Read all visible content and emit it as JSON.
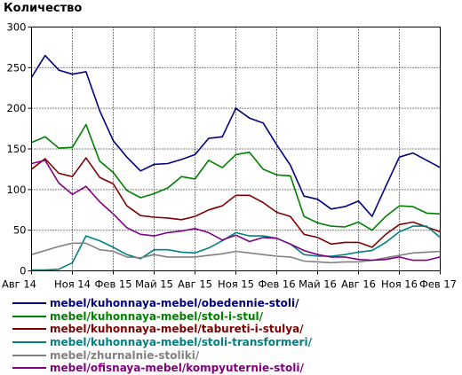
{
  "chart_data": {
    "type": "line",
    "title": "Количество",
    "xlabel": "",
    "ylabel": "",
    "ylim": [
      0,
      300
    ],
    "yticks": [
      0,
      50,
      100,
      150,
      200,
      250,
      300
    ],
    "grid": true,
    "legend_position": "bottom",
    "x": [
      "2014-08",
      "2014-09",
      "2014-10",
      "2014-11",
      "2014-12",
      "2015-01",
      "2015-02",
      "2015-03",
      "2015-04",
      "2015-05",
      "2015-06",
      "2015-07",
      "2015-08",
      "2015-09",
      "2015-10",
      "2015-11",
      "2015-12",
      "2016-01",
      "2016-02",
      "2016-03",
      "2016-04",
      "2016-05",
      "2016-06",
      "2016-07",
      "2016-08",
      "2016-09",
      "2016-10",
      "2016-11",
      "2016-12",
      "2017-01",
      "2017-02"
    ],
    "xtick_labels": [
      "Авг 14",
      "Ноя 14",
      "Фев 15",
      "Май 15",
      "Авг 15",
      "Ноя 15",
      "Фев 16",
      "Май 16",
      "Авг 16",
      "Ноя 16",
      "Фев 17"
    ],
    "series": [
      {
        "name": "mebel/kuhonnaya-mebel/obedennie-stoli/",
        "color": "#00007f",
        "values": [
          238,
          265,
          247,
          242,
          245,
          197,
          160,
          140,
          123,
          131,
          132,
          137,
          143,
          163,
          165,
          200,
          188,
          182,
          155,
          130,
          92,
          88,
          76,
          79,
          86,
          67,
          104,
          140,
          145,
          136,
          127
        ]
      },
      {
        "name": "mebel/kuhonnaya-mebel/stol-i-stul/",
        "color": "#008000",
        "values": [
          158,
          165,
          151,
          152,
          180,
          135,
          121,
          99,
          90,
          95,
          102,
          116,
          113,
          136,
          127,
          143,
          146,
          125,
          118,
          117,
          67,
          59,
          55,
          54,
          60,
          50,
          67,
          80,
          79,
          71,
          70
        ]
      },
      {
        "name": "mebel/kuhonnaya-mebel/tabureti-i-stulya/",
        "color": "#7f0000",
        "values": [
          125,
          138,
          120,
          116,
          139,
          115,
          107,
          80,
          68,
          66,
          65,
          63,
          67,
          75,
          80,
          93,
          93,
          84,
          72,
          67,
          45,
          41,
          33,
          35,
          35,
          29,
          45,
          57,
          60,
          54,
          48
        ]
      },
      {
        "name": "mebel/kuhonnaya-mebel/stoli-transformeri/",
        "color": "#008080",
        "values": [
          1,
          1,
          2,
          10,
          43,
          37,
          29,
          20,
          15,
          26,
          26,
          23,
          22,
          28,
          37,
          47,
          43,
          43,
          40,
          33,
          20,
          18,
          18,
          20,
          23,
          25,
          35,
          48,
          55,
          55,
          41
        ]
      },
      {
        "name": "mebel/zhurnalnie-stoliki/",
        "color": "#808080",
        "values": [
          20,
          25,
          30,
          34,
          34,
          26,
          24,
          17,
          16,
          20,
          17,
          17,
          17,
          19,
          21,
          24,
          22,
          20,
          18,
          17,
          12,
          11,
          10,
          11,
          11,
          13,
          16,
          19,
          22,
          23,
          24
        ]
      },
      {
        "name": "mebel/ofisnaya-mebel/kompyuternie-stoli/",
        "color": "#800080",
        "values": [
          132,
          136,
          108,
          94,
          104,
          85,
          70,
          53,
          45,
          43,
          47,
          49,
          52,
          47,
          38,
          44,
          36,
          41,
          40,
          33,
          25,
          20,
          17,
          17,
          14,
          13,
          14,
          17,
          13,
          13,
          17
        ]
      }
    ]
  }
}
